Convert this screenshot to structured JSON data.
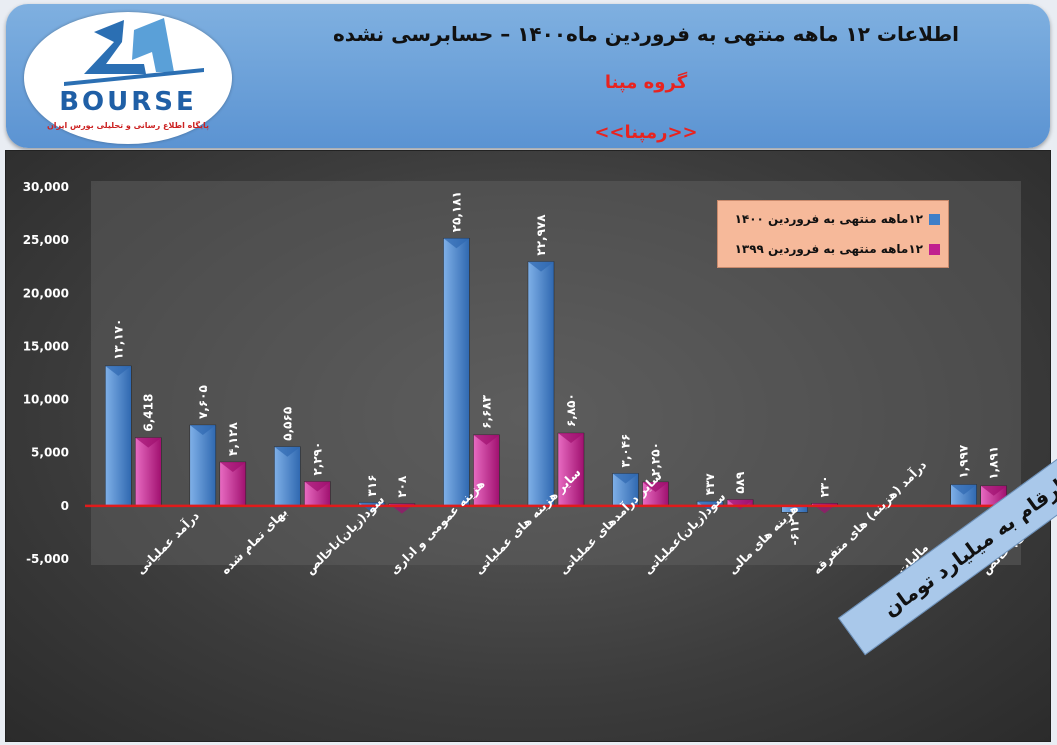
{
  "header": {
    "title": "اطلاعات ۱۲ ماهه منتهی به فروردین ماه۱۴۰۰ – حسابرسی نشده",
    "company": "گروه مپنا",
    "ticker": "<<رمپنا>>"
  },
  "logo": {
    "brand": "BOURSE",
    "tagline": "پایگاه اطلاع رسانی و تحلیلی بورس ایران"
  },
  "unit_note": "ارقام به میلیارد تومان",
  "colors": {
    "series_1400": "#3f7fc8",
    "series_1399": "#c0208f",
    "zero_line": "#e01b1b",
    "axis_text": "#ffffff"
  },
  "chart_data": {
    "type": "bar",
    "categories": [
      "درآمد عملیاتی",
      "بهای تمام شده",
      "سود(زیان)ناخالص",
      "هزینه عمومی و اداری",
      "سایر هزینه های عملیاتی",
      "سایر درآمدهای عملیاتی",
      "سود(زیان)عملیاتی",
      "هزینه های مالی",
      "درآمد (هزینه) های متفرقه",
      "مالیات",
      "سود(زیان) خالص"
    ],
    "series": [
      {
        "name": "۱۲ماهه منتهی به فروردین ۱۴۰۰",
        "values": [
          13170,
          7605,
          5565,
          316,
          25181,
          22978,
          3046,
          437,
          -612,
          0,
          1997
        ],
        "labels": [
          "۱۳,۱۷۰",
          "۷,۶۰۵",
          "۵,۵۶۵",
          "۳۱۶",
          "۲۵,۱۸۱",
          "۲۲,۹۷۸",
          "۳,۰۴۶",
          "۴۳۷",
          "-۶۱۲",
          "",
          "۱,۹۹۷"
        ]
      },
      {
        "name": "۱۲ماهه منتهی به فروردین ۱۳۹۹",
        "values": [
          6418,
          4128,
          2290,
          208,
          6683,
          6850,
          2250,
          589,
          230,
          0,
          1891
        ],
        "labels": [
          "6,418",
          "۴,۱۲۸",
          "۲,۲۹۰",
          "۲۰۸",
          "۶,۶۸۳",
          "۶,۸۵۰",
          "۲,۲۵۰",
          "۵۸۹",
          "۲۳۰",
          "",
          "۱,۸۹۱"
        ]
      }
    ],
    "yticks": [
      "30,000",
      "25,000",
      "20,000",
      "15,000",
      "10,000",
      "5,000",
      "0",
      "-5,000"
    ],
    "ytick_values": [
      30000,
      25000,
      20000,
      15000,
      10000,
      5000,
      0,
      -5000
    ],
    "ylim": [
      -5000,
      30000
    ],
    "legend_position": "top-right",
    "grid": false
  }
}
